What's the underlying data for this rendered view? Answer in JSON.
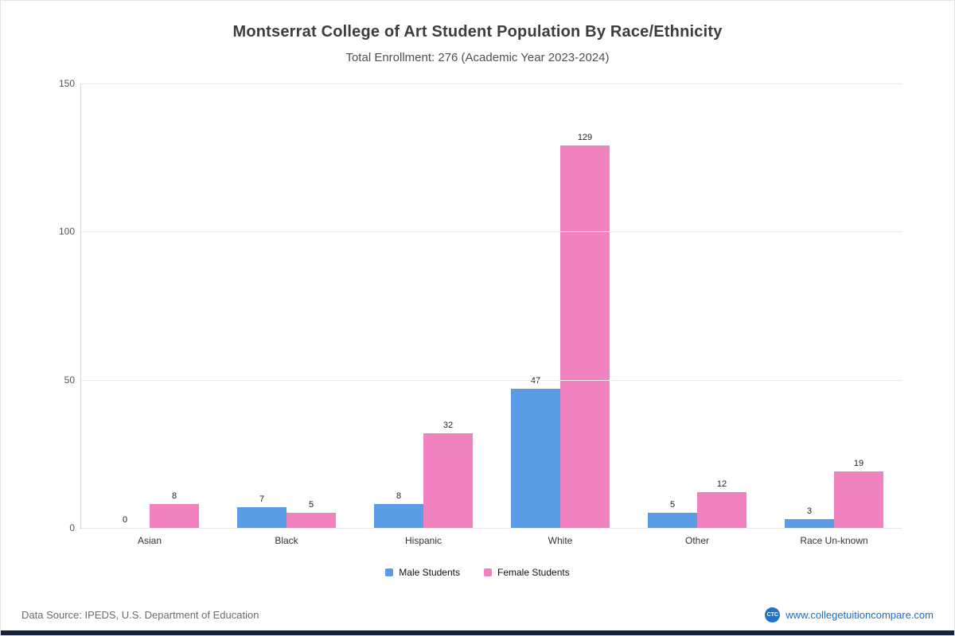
{
  "chart_data": {
    "type": "bar",
    "title": "Montserrat College of Art Student Population By Race/Ethnicity",
    "subtitle": "Total Enrollment: 276 (Academic Year 2023-2024)",
    "categories": [
      "Asian",
      "Black",
      "Hispanic",
      "White",
      "Other",
      "Race Un-known"
    ],
    "series": [
      {
        "name": "Male Students",
        "color": "#5b9ce6",
        "values": [
          0,
          7,
          8,
          47,
          5,
          3
        ]
      },
      {
        "name": "Female Students",
        "color": "#ef82bf",
        "values": [
          8,
          5,
          32,
          129,
          12,
          19
        ]
      }
    ],
    "ylim": [
      0,
      150
    ],
    "yticks": [
      0,
      50,
      100,
      150
    ],
    "grid": true,
    "legend_position": "bottom"
  },
  "footer": {
    "source": "Data Source: IPEDS, U.S. Department of Education",
    "site": "www.collegetuitioncompare.com",
    "logo_text": "CTC"
  }
}
